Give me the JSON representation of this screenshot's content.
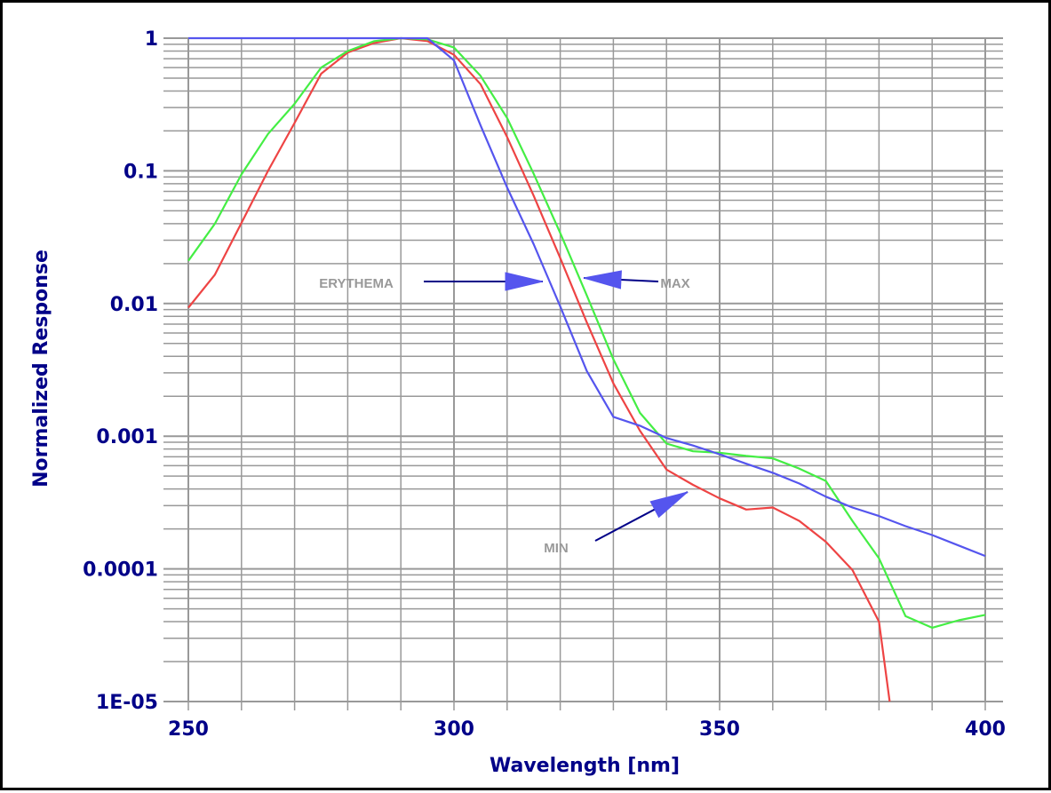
{
  "chart_data": {
    "type": "line",
    "title": "",
    "xlabel": "Wavelength [nm]",
    "ylabel": "Normalized Response",
    "xlim": [
      250,
      400
    ],
    "ylim": [
      1e-05,
      1
    ],
    "yscale": "log",
    "grid": true,
    "x_ticks": [
      250,
      300,
      350,
      400
    ],
    "x_tick_labels": [
      "250",
      "300",
      "350",
      "400"
    ],
    "y_ticks": [
      1,
      0.1,
      0.01,
      0.001,
      0.0001,
      1e-05
    ],
    "y_tick_labels": [
      "1",
      "0.1",
      "0.01",
      "0.001",
      "0.0001",
      "1E-05"
    ],
    "series": [
      {
        "name": "ERYTHEMA",
        "color": "#ee4444",
        "x": [
          250,
          255,
          260,
          265,
          270,
          275,
          280,
          285,
          290,
          295,
          300,
          305,
          310,
          315,
          320,
          325,
          330,
          335,
          340,
          345,
          350,
          355,
          360,
          365,
          370,
          375,
          380,
          382
        ],
        "y": [
          0.0093,
          0.0165,
          0.0405,
          0.1,
          0.23,
          0.54,
          0.78,
          0.92,
          1.0,
          0.95,
          0.75,
          0.45,
          0.18,
          0.065,
          0.022,
          0.0072,
          0.0025,
          0.0011,
          0.00056,
          0.00043,
          0.00034,
          0.00028,
          0.00029,
          0.00023,
          0.00016,
          9.8e-05,
          4e-05,
          1e-05
        ]
      },
      {
        "name": "MAX",
        "color": "#44ee44",
        "x": [
          250,
          255,
          260,
          265,
          270,
          275,
          280,
          285,
          290,
          295,
          300,
          305,
          310,
          315,
          320,
          325,
          330,
          335,
          340,
          345,
          350,
          355,
          360,
          365,
          370,
          375,
          380,
          385,
          390,
          395,
          400
        ],
        "y": [
          0.021,
          0.04,
          0.094,
          0.19,
          0.32,
          0.6,
          0.8,
          0.95,
          1.0,
          0.98,
          0.85,
          0.52,
          0.25,
          0.095,
          0.034,
          0.0115,
          0.0038,
          0.0015,
          0.00088,
          0.00077,
          0.00075,
          0.00071,
          0.00068,
          0.00057,
          0.00046,
          0.00023,
          0.00012,
          4.4e-05,
          3.6e-05,
          4.1e-05,
          4.5e-05
        ]
      },
      {
        "name": "MIN",
        "color": "#5555ee",
        "x": [
          250,
          295,
          300,
          305,
          310,
          315,
          320,
          325,
          330,
          335,
          340,
          345,
          350,
          355,
          360,
          365,
          370,
          375,
          380,
          385,
          390,
          395,
          400
        ],
        "y": [
          1.0,
          1.0,
          0.68,
          0.22,
          0.075,
          0.028,
          0.0095,
          0.0031,
          0.0014,
          0.0012,
          0.00097,
          0.00085,
          0.00073,
          0.00062,
          0.00053,
          0.00044,
          0.00035,
          0.00029,
          0.00025,
          0.00021,
          0.00018,
          0.00015,
          0.000125
        ]
      }
    ],
    "annotations": [
      {
        "text": "ERYTHEMA",
        "arrow_color": "#000088",
        "head_color": "#5555ee"
      },
      {
        "text": "MAX",
        "arrow_color": "#000088",
        "head_color": "#5555ee"
      },
      {
        "text": "MIN",
        "arrow_color": "#000088",
        "head_color": "#5555ee"
      }
    ],
    "colors": {
      "axis_text": "#000088",
      "grid": "#999999",
      "annotation_text": "#999999"
    }
  }
}
